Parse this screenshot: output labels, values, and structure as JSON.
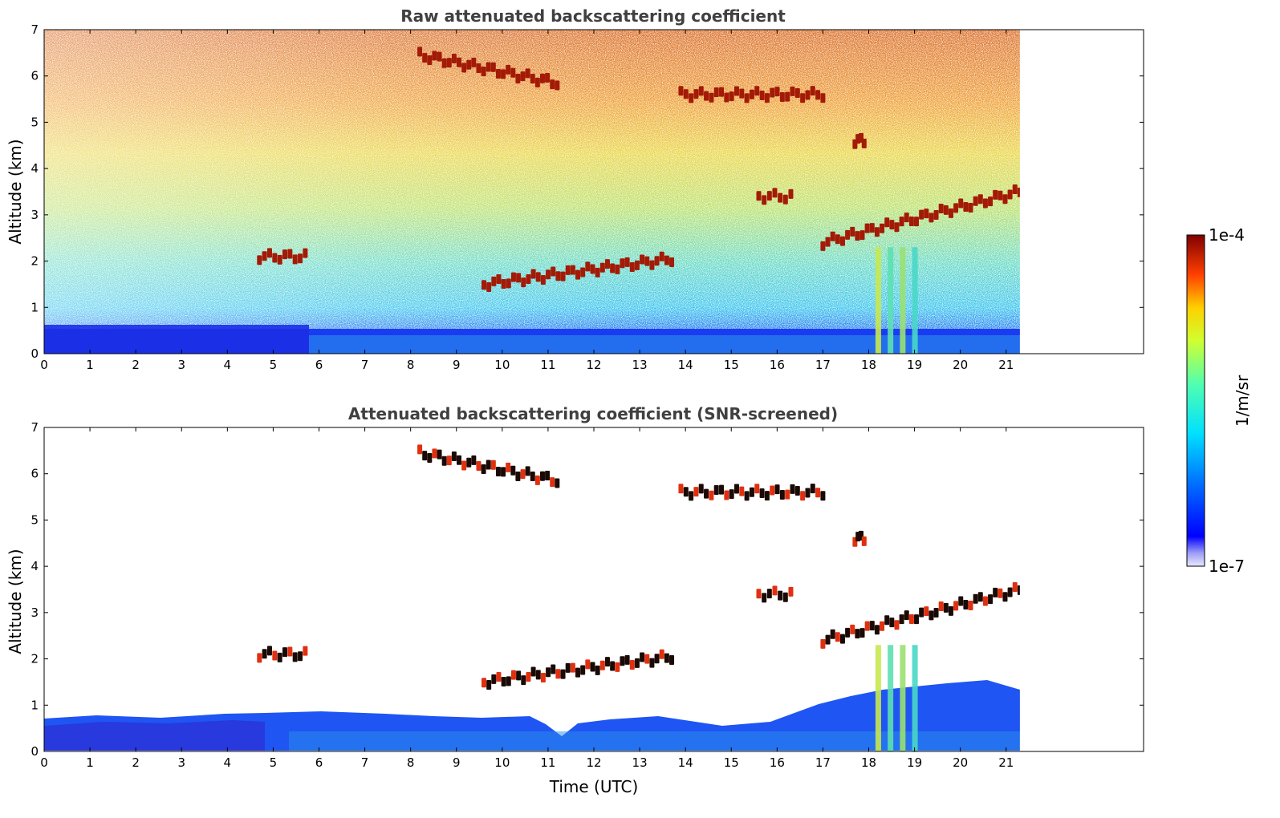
{
  "chart_data": [
    {
      "type": "heatmap",
      "title": "Raw attenuated backscattering coefficient",
      "xlabel": "",
      "ylabel": "Altitude (km)",
      "xlim": [
        0,
        24
      ],
      "ylim": [
        0,
        7
      ],
      "x_ticks": [
        "0",
        "1",
        "2",
        "3",
        "4",
        "5",
        "6",
        "7",
        "8",
        "9",
        "10",
        "11",
        "12",
        "13",
        "14",
        "15",
        "16",
        "17",
        "18",
        "19",
        "20",
        "21"
      ],
      "y_ticks": [
        "0",
        "1",
        "2",
        "3",
        "4",
        "5",
        "6",
        "7"
      ],
      "data_end_time": 21.3,
      "cloud_layers": [
        {
          "time_start": 4.7,
          "time_end": 5.7,
          "altitude": 2.1
        },
        {
          "time_start": 9.6,
          "time_end": 13.7,
          "altitude_start": 1.5,
          "altitude_end": 2.05
        },
        {
          "time_start": 8.2,
          "time_end": 11.2,
          "altitude_start": 6.45,
          "altitude_end": 5.85
        },
        {
          "time_start": 13.9,
          "time_end": 17.0,
          "altitude": 5.6
        },
        {
          "time_start": 15.6,
          "time_end": 16.3,
          "altitude": 3.4
        },
        {
          "time_start": 17.0,
          "time_end": 21.3,
          "altitude_start": 2.4,
          "altitude_end": 3.5
        },
        {
          "time_start": 17.7,
          "time_end": 17.9,
          "altitude": 4.6
        }
      ],
      "boundary_layer_top_km": 0.5,
      "precipitation_shafts": [
        {
          "time_start": 18.2,
          "time_end": 19.0
        }
      ]
    },
    {
      "type": "heatmap",
      "title": "Attenuated backscattering coefficient (SNR-screened)",
      "xlabel": "Time (UTC)",
      "ylabel": "Altitude (km)",
      "xlim": [
        0,
        24
      ],
      "ylim": [
        0,
        7
      ],
      "x_ticks": [
        "0",
        "1",
        "2",
        "3",
        "4",
        "5",
        "6",
        "7",
        "8",
        "9",
        "10",
        "11",
        "12",
        "13",
        "14",
        "15",
        "16",
        "17",
        "18",
        "19",
        "20",
        "21"
      ],
      "y_ticks": [
        "0",
        "1",
        "2",
        "3",
        "4",
        "5",
        "6",
        "7"
      ],
      "data_end_time": 21.3,
      "boundary_layer_top_km": 0.6
    }
  ],
  "colorbar": {
    "min_label": "1e-7",
    "max_label": "1e-4",
    "unit_label": "1/m/sr",
    "colormap": "jet"
  }
}
